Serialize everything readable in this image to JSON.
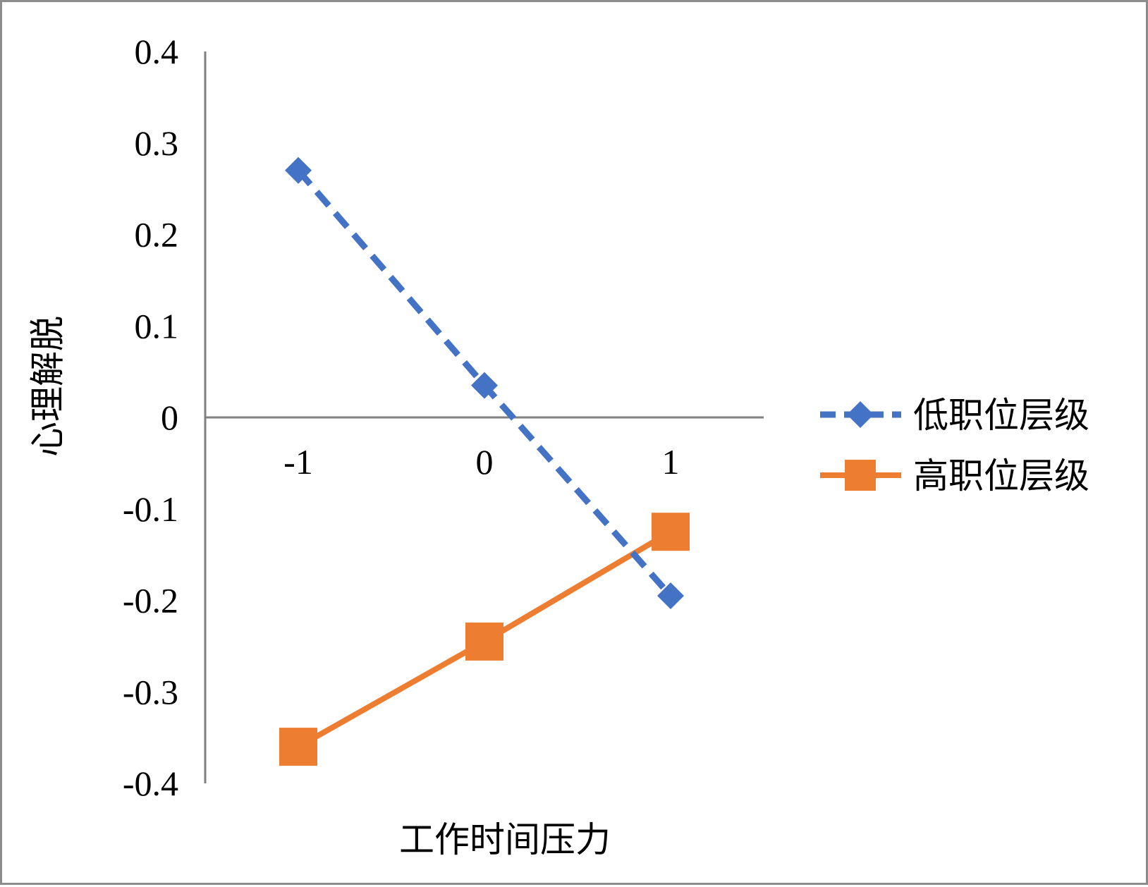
{
  "chart_data": {
    "type": "line",
    "xlabel": "工作时间压力",
    "ylabel": "心理解脱",
    "x": [
      -1,
      0,
      1
    ],
    "x_tick_labels": [
      "-1",
      "0",
      "1"
    ],
    "y_ticks": [
      0.4,
      0.3,
      0.2,
      0.1,
      0,
      -0.1,
      -0.2,
      -0.3,
      -0.4
    ],
    "y_tick_labels": [
      "0.4",
      "0.3",
      "0.2",
      "0.1",
      "0",
      "-0.1",
      "-0.2",
      "-0.3",
      "-0.4"
    ],
    "ylim": [
      -0.4,
      0.4
    ],
    "grid": false,
    "legend_position": "right",
    "series": [
      {
        "name": "低职位层级",
        "values": [
          0.27,
          0.035,
          -0.195
        ],
        "color": "#4472c4",
        "line_style": "dashed",
        "marker": "diamond"
      },
      {
        "name": "高职位层级",
        "values": [
          -0.36,
          -0.245,
          -0.125
        ],
        "color": "#ed7d31",
        "line_style": "solid",
        "marker": "square"
      }
    ]
  }
}
